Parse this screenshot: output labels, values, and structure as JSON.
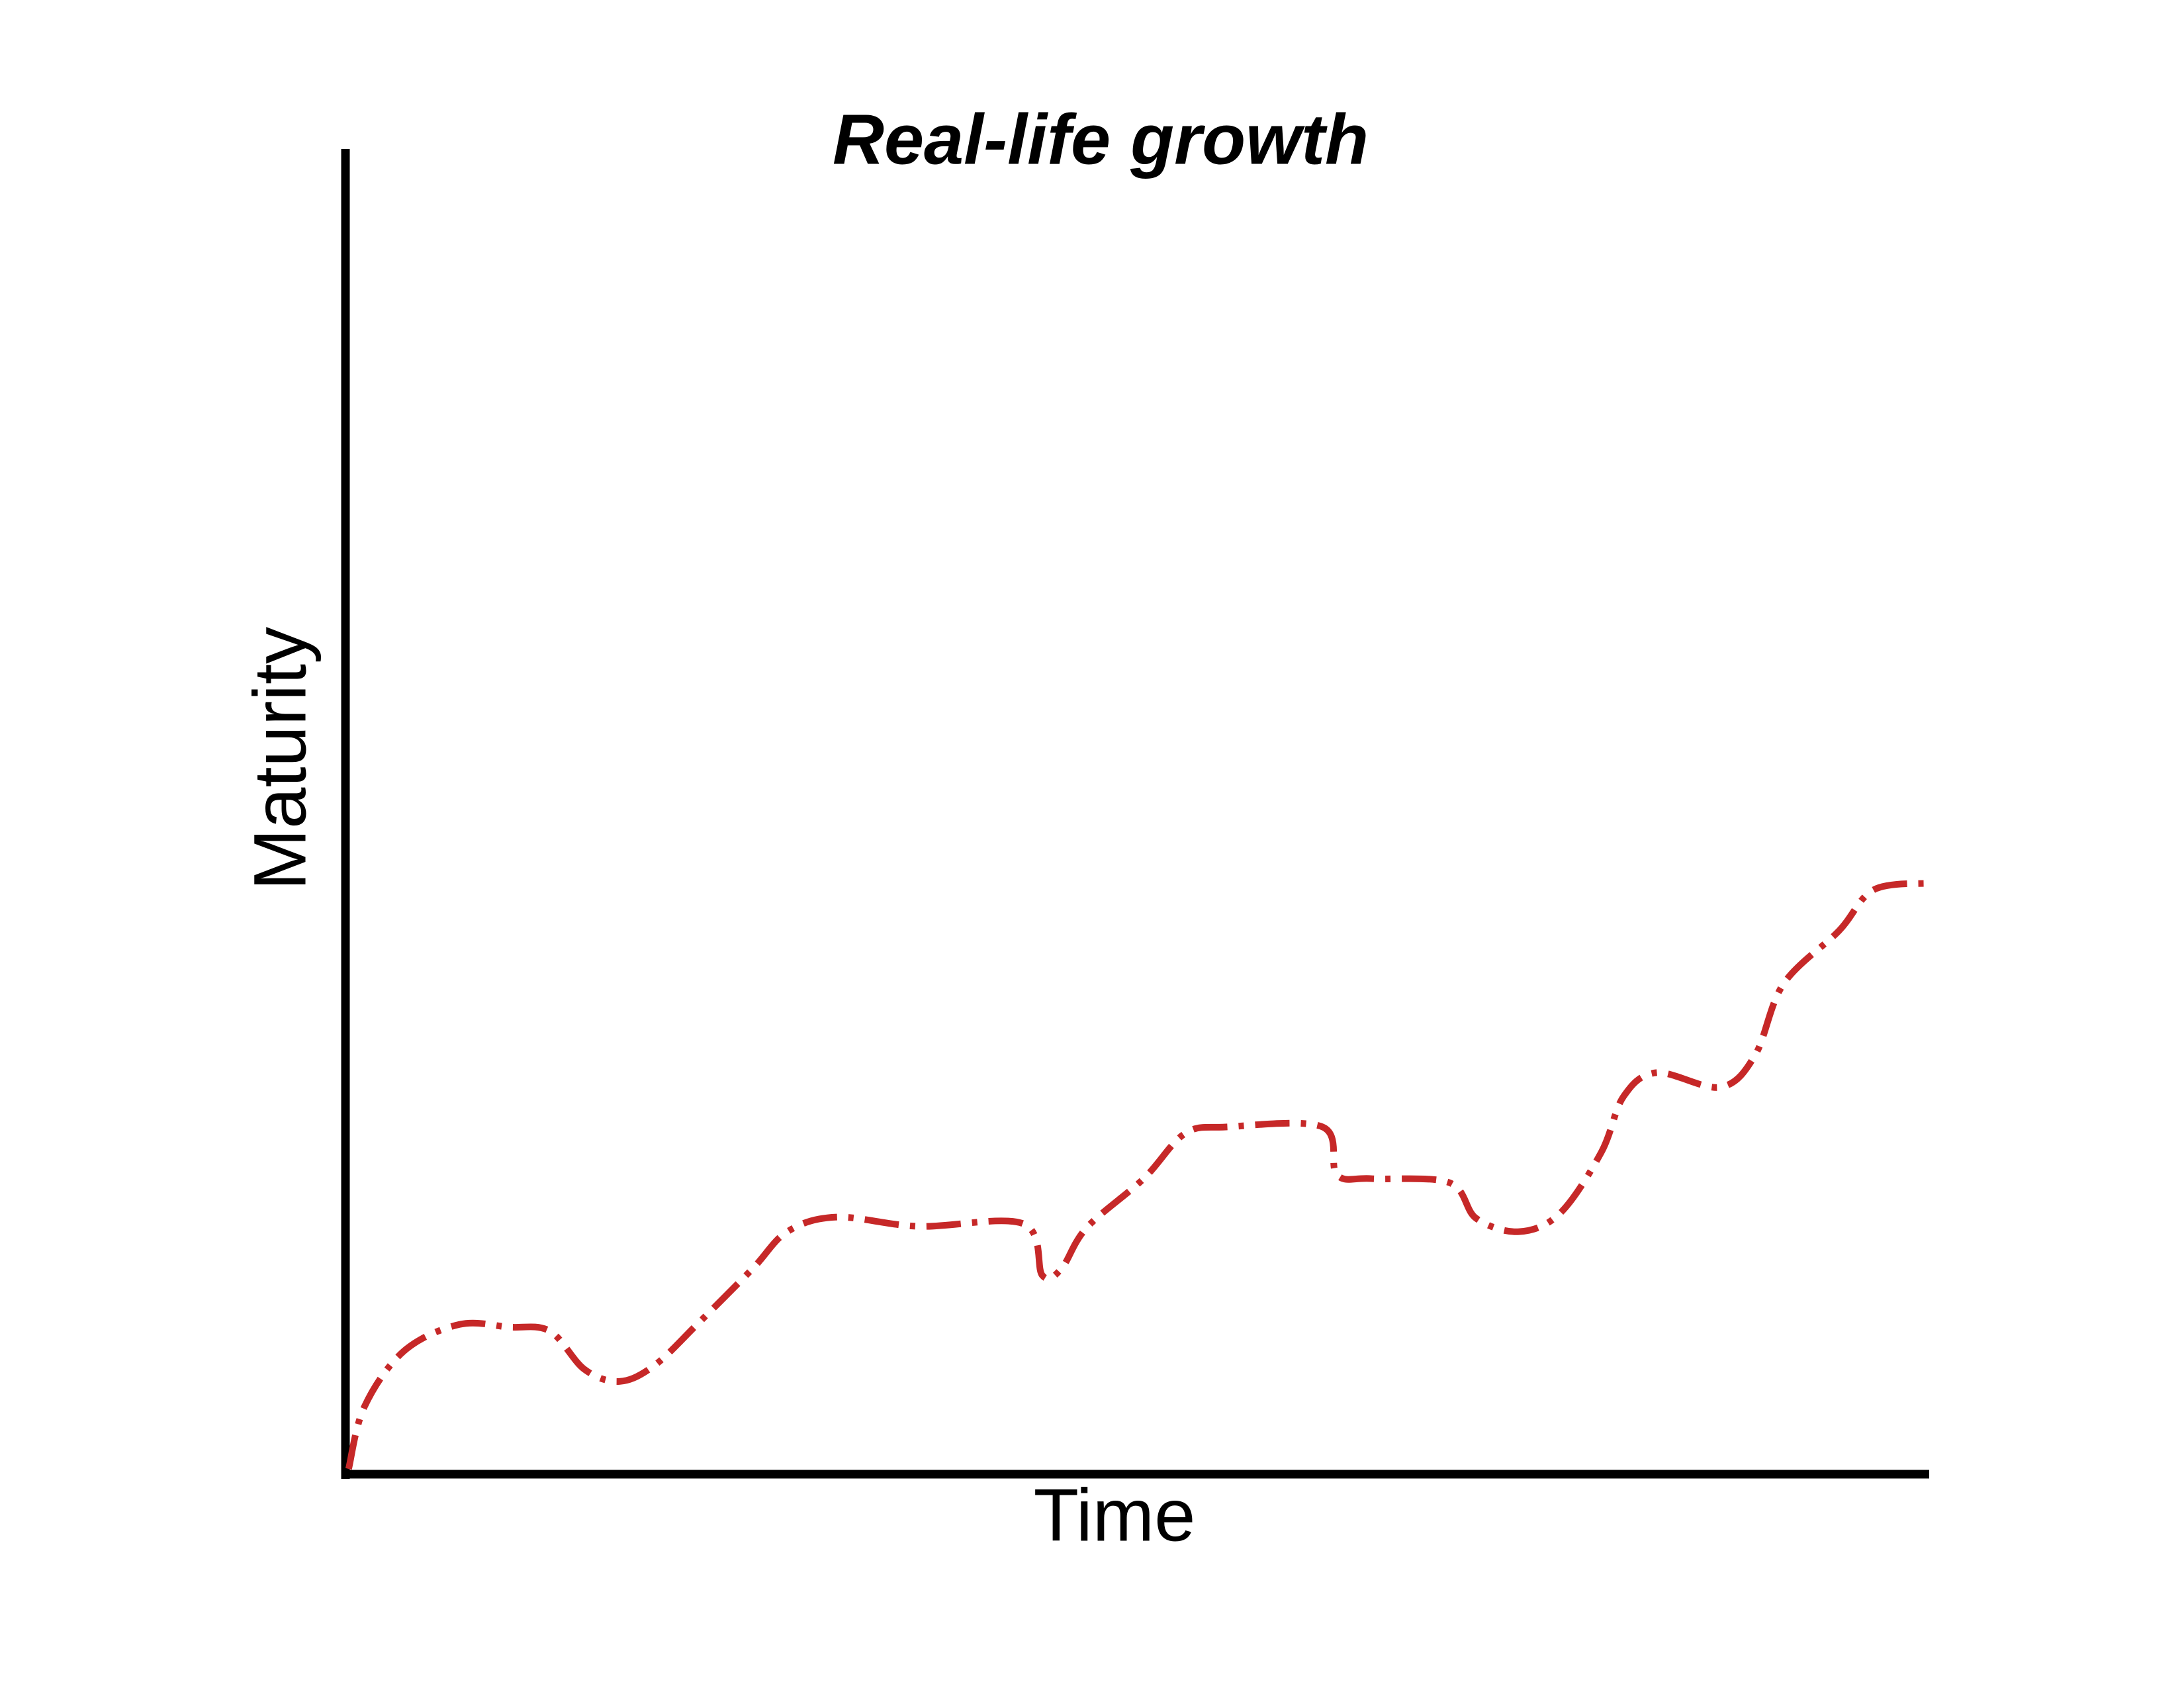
{
  "chart_data": {
    "type": "line",
    "title": "Real-life growth",
    "x_label": "Time",
    "y_label": "Maturity",
    "xlim": [
      0,
      100
    ],
    "ylim": [
      0,
      100
    ],
    "x": [
      0.2,
      1.2,
      3.7,
      7.2,
      10.3,
      12.9,
      15.1,
      17.3,
      19.5,
      22.2,
      25.7,
      27.9,
      31.0,
      36.2,
      42.8,
      44.0,
      45.2,
      46.8,
      50.4,
      53.0,
      55.6,
      61.7,
      62.6,
      64.8,
      69.7,
      71.4,
      74.1,
      76.7,
      79.3,
      80.7,
      82.8,
      86.8,
      89.0,
      90.8,
      94.3,
      96.5,
      100
    ],
    "series": [
      {
        "color": "#c62828",
        "values": [
          0.4,
          5.1,
          9.3,
          11.3,
          11.1,
          10.8,
          7.9,
          7.0,
          8.2,
          11.3,
          15.5,
          18.3,
          19.4,
          18.7,
          18.9,
          15.0,
          15.5,
          18.6,
          22.3,
          25.7,
          26.2,
          26.2,
          22.6,
          22.3,
          22.0,
          19.3,
          18.3,
          19.7,
          24.3,
          28.5,
          30.3,
          29.2,
          31.6,
          37.0,
          41.0,
          44.1,
          44.6
        ]
      }
    ]
  }
}
